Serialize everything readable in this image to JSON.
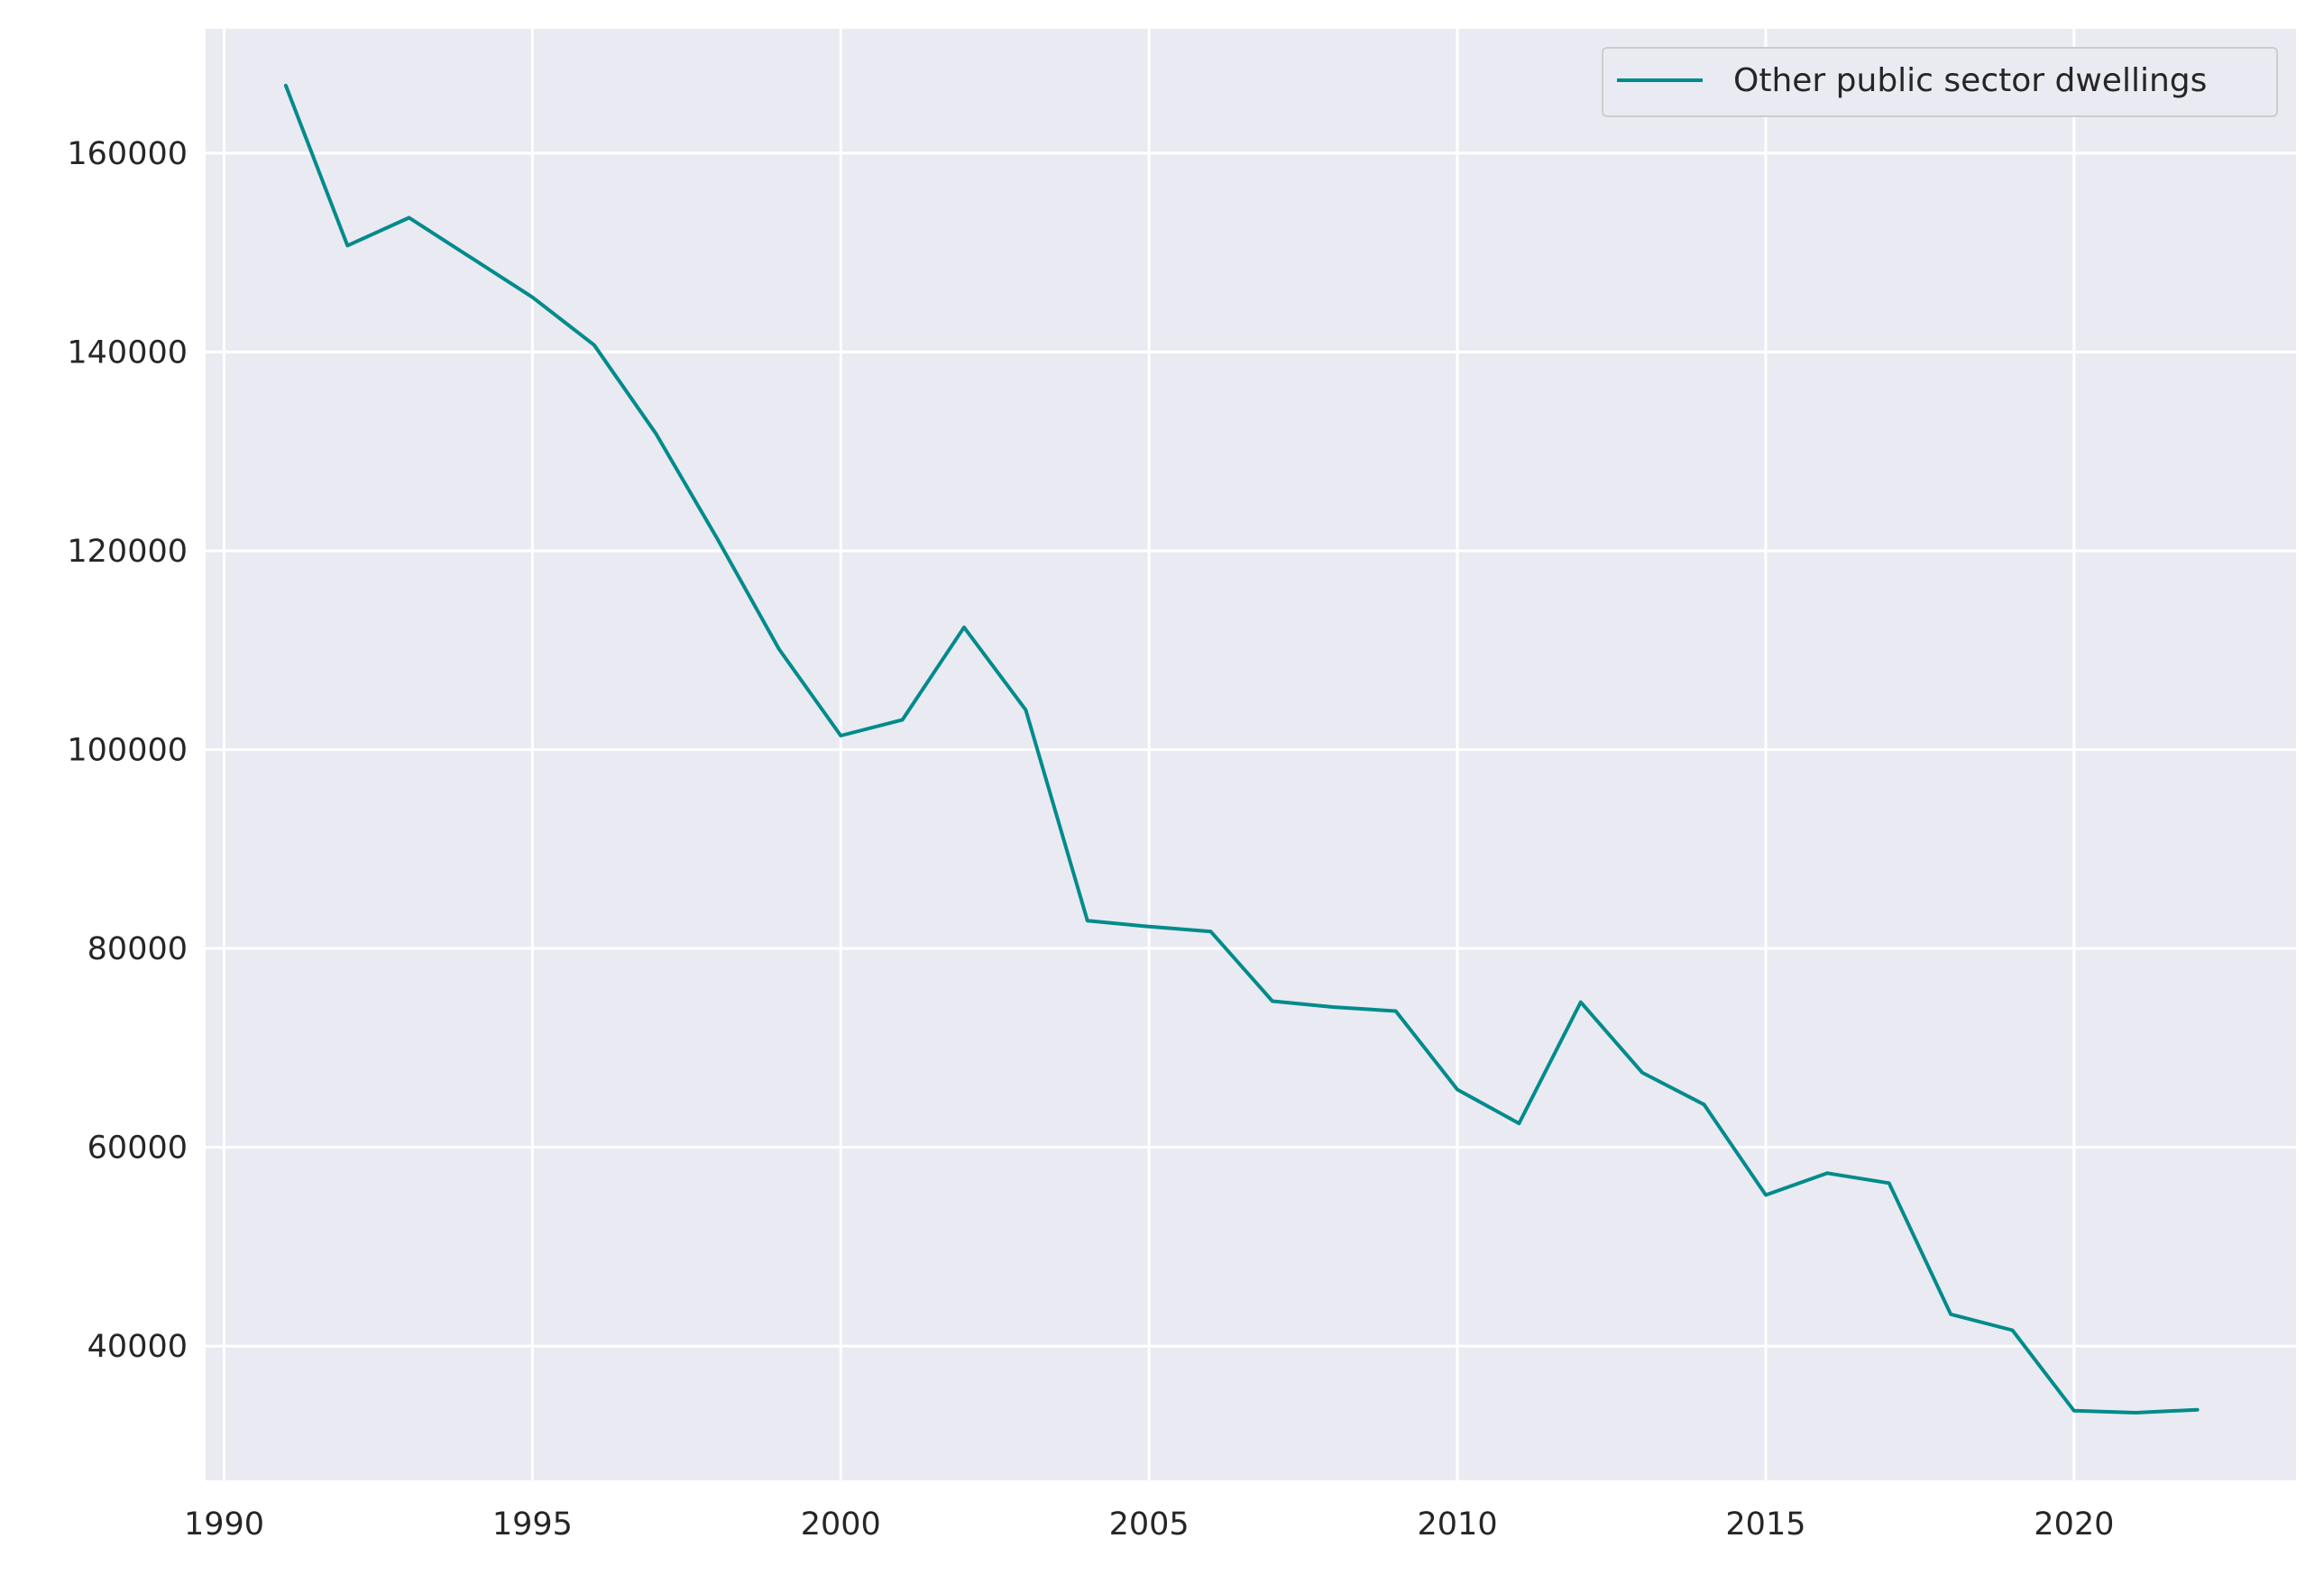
{
  "chart_data": {
    "type": "line",
    "title": "",
    "xlabel": "",
    "ylabel": "",
    "xlim": [
      1989.7,
      2023.6
    ],
    "ylim": [
      26500,
      172500
    ],
    "x_ticks": [
      1990,
      1995,
      2000,
      2005,
      2010,
      2015,
      2020
    ],
    "y_ticks": [
      40000,
      60000,
      80000,
      100000,
      120000,
      140000,
      160000
    ],
    "grid": true,
    "legend_position": "top-right",
    "series": [
      {
        "name": "Other public sector dwellings",
        "color": "#008b8b",
        "x": [
          1991,
          1992,
          1993,
          1994,
          1995,
          1996,
          1997,
          1998,
          1999,
          2000,
          2001,
          2002,
          2003,
          2004,
          2005,
          2006,
          2007,
          2008,
          2009,
          2010,
          2011,
          2012,
          2013,
          2014,
          2015,
          2016,
          2017,
          2018,
          2019,
          2020,
          2021,
          2022
        ],
        "values": [
          166800,
          150700,
          153500,
          149500,
          145500,
          140700,
          131800,
          121200,
          110100,
          101400,
          103000,
          112300,
          104000,
          82800,
          82200,
          81700,
          74700,
          74100,
          73700,
          65800,
          62400,
          74600,
          67500,
          64300,
          55200,
          57400,
          56400,
          43200,
          41600,
          33500,
          33300,
          33600
        ]
      }
    ]
  }
}
